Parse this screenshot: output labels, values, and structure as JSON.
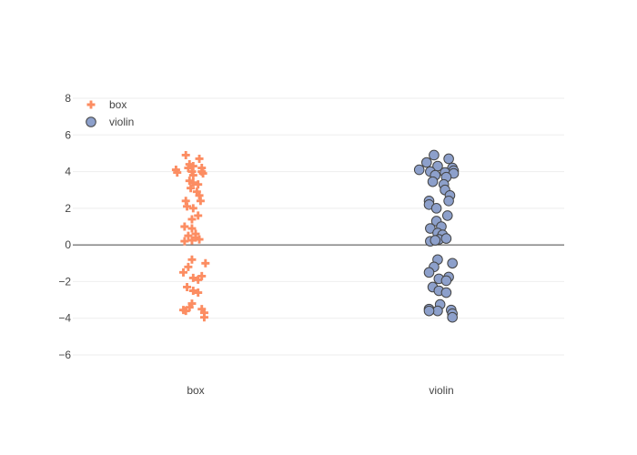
{
  "chart_data": {
    "type": "scatter",
    "title": "",
    "xlabel": "",
    "ylabel": "",
    "categories": [
      "box",
      "violin"
    ],
    "ylim": [
      -7,
      8.5
    ],
    "y_ticks": [
      8,
      6,
      4,
      2,
      0,
      -2,
      -4,
      -6
    ],
    "y_tick_labels": [
      "8",
      "6",
      "4",
      "2",
      "0",
      "−2",
      "−4",
      "−6"
    ],
    "grid": true,
    "zero_line": true,
    "legend": {
      "placement": "top-left"
    },
    "series": [
      {
        "name": "box",
        "category": "box",
        "marker": "cross",
        "color": "#fc8d62",
        "points": [
          {
            "dx": -0.08,
            "y": 4.9
          },
          {
            "dx": 0.03,
            "y": 4.7
          },
          {
            "dx": -0.05,
            "y": 4.4
          },
          {
            "dx": -0.02,
            "y": 4.3
          },
          {
            "dx": -0.06,
            "y": 4.2
          },
          {
            "dx": 0.05,
            "y": 4.2
          },
          {
            "dx": -0.16,
            "y": 4.1
          },
          {
            "dx": -0.03,
            "y": 4.0
          },
          {
            "dx": 0.05,
            "y": 4.0
          },
          {
            "dx": -0.15,
            "y": 3.95
          },
          {
            "dx": 0.06,
            "y": 3.9
          },
          {
            "dx": -0.02,
            "y": 3.8
          },
          {
            "dx": -0.05,
            "y": 3.5
          },
          {
            "dx": -0.02,
            "y": 3.4
          },
          {
            "dx": 0.02,
            "y": 3.3
          },
          {
            "dx": -0.04,
            "y": 3.1
          },
          {
            "dx": 0.01,
            "y": 2.9
          },
          {
            "dx": 0.03,
            "y": 2.7
          },
          {
            "dx": -0.08,
            "y": 2.4
          },
          {
            "dx": 0.04,
            "y": 2.4
          },
          {
            "dx": -0.07,
            "y": 2.1
          },
          {
            "dx": -0.02,
            "y": 2.0
          },
          {
            "dx": 0.02,
            "y": 1.6
          },
          {
            "dx": -0.03,
            "y": 1.4
          },
          {
            "dx": -0.09,
            "y": 1.0
          },
          {
            "dx": -0.03,
            "y": 0.9
          },
          {
            "dx": 0.0,
            "y": 0.6
          },
          {
            "dx": -0.06,
            "y": 0.5
          },
          {
            "dx": 0.0,
            "y": 0.4
          },
          {
            "dx": 0.03,
            "y": 0.3
          },
          {
            "dx": -0.03,
            "y": 0.25
          },
          {
            "dx": -0.09,
            "y": 0.2
          },
          {
            "dx": -0.03,
            "y": -0.8
          },
          {
            "dx": 0.08,
            "y": -1.0
          },
          {
            "dx": -0.06,
            "y": -1.2
          },
          {
            "dx": -0.1,
            "y": -1.5
          },
          {
            "dx": 0.05,
            "y": -1.7
          },
          {
            "dx": -0.02,
            "y": -1.8
          },
          {
            "dx": 0.02,
            "y": -1.9
          },
          {
            "dx": -0.07,
            "y": -2.3
          },
          {
            "dx": -0.02,
            "y": -2.5
          },
          {
            "dx": 0.02,
            "y": -2.6
          },
          {
            "dx": -0.03,
            "y": -3.2
          },
          {
            "dx": -0.05,
            "y": -3.4
          },
          {
            "dx": -0.1,
            "y": -3.55
          },
          {
            "dx": 0.05,
            "y": -3.5
          },
          {
            "dx": -0.08,
            "y": -3.6
          },
          {
            "dx": 0.07,
            "y": -3.7
          },
          {
            "dx": 0.07,
            "y": -3.95
          }
        ]
      },
      {
        "name": "violin",
        "category": "violin",
        "marker": "circle",
        "color": "#8da0cb",
        "stroke": "#444444",
        "points": [
          {
            "dx": -0.06,
            "y": 4.9
          },
          {
            "dx": 0.06,
            "y": 4.7
          },
          {
            "dx": -0.12,
            "y": 4.5
          },
          {
            "dx": -0.03,
            "y": 4.3
          },
          {
            "dx": 0.09,
            "y": 4.2
          },
          {
            "dx": -0.18,
            "y": 4.1
          },
          {
            "dx": 0.1,
            "y": 4.05
          },
          {
            "dx": -0.09,
            "y": 4.0
          },
          {
            "dx": 0.03,
            "y": 3.95
          },
          {
            "dx": 0.1,
            "y": 3.9
          },
          {
            "dx": -0.05,
            "y": 3.8
          },
          {
            "dx": 0.04,
            "y": 3.7
          },
          {
            "dx": -0.07,
            "y": 3.45
          },
          {
            "dx": 0.02,
            "y": 3.3
          },
          {
            "dx": 0.03,
            "y": 3.0
          },
          {
            "dx": 0.07,
            "y": 2.7
          },
          {
            "dx": 0.06,
            "y": 2.4
          },
          {
            "dx": -0.1,
            "y": 2.4
          },
          {
            "dx": -0.1,
            "y": 2.2
          },
          {
            "dx": -0.04,
            "y": 2.0
          },
          {
            "dx": 0.05,
            "y": 1.6
          },
          {
            "dx": -0.04,
            "y": 1.3
          },
          {
            "dx": 0.0,
            "y": 1.0
          },
          {
            "dx": -0.09,
            "y": 0.9
          },
          {
            "dx": -0.03,
            "y": 0.65
          },
          {
            "dx": 0.01,
            "y": 0.55
          },
          {
            "dx": -0.02,
            "y": 0.3
          },
          {
            "dx": 0.04,
            "y": 0.35
          },
          {
            "dx": -0.09,
            "y": 0.2
          },
          {
            "dx": -0.05,
            "y": 0.25
          },
          {
            "dx": -0.03,
            "y": -0.8
          },
          {
            "dx": 0.09,
            "y": -1.0
          },
          {
            "dx": -0.06,
            "y": -1.2
          },
          {
            "dx": -0.1,
            "y": -1.5
          },
          {
            "dx": 0.06,
            "y": -1.75
          },
          {
            "dx": -0.02,
            "y": -1.85
          },
          {
            "dx": 0.04,
            "y": -1.95
          },
          {
            "dx": -0.07,
            "y": -2.3
          },
          {
            "dx": -0.02,
            "y": -2.5
          },
          {
            "dx": 0.04,
            "y": -2.6
          },
          {
            "dx": -0.01,
            "y": -3.25
          },
          {
            "dx": -0.1,
            "y": -3.5
          },
          {
            "dx": 0.08,
            "y": -3.55
          },
          {
            "dx": -0.03,
            "y": -3.6
          },
          {
            "dx": 0.09,
            "y": -3.75
          },
          {
            "dx": -0.1,
            "y": -3.6
          },
          {
            "dx": 0.09,
            "y": -3.95
          }
        ]
      }
    ]
  }
}
